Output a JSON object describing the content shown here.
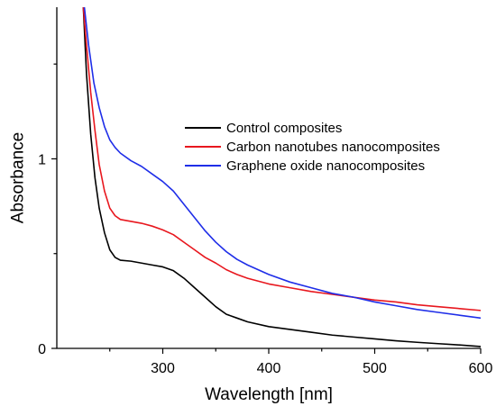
{
  "chart_data": {
    "type": "line",
    "xlabel": "Wavelength [nm]",
    "ylabel": "Absorbance",
    "xlim": [
      200,
      600
    ],
    "ylim": [
      0,
      1.8
    ],
    "xticks": [
      300,
      400,
      500,
      600
    ],
    "yticks": [
      0,
      1
    ],
    "legend_position": "center-right",
    "grid": false,
    "series": [
      {
        "name": "Control composites",
        "color": "#000000",
        "points": [
          [
            225,
            1.8
          ],
          [
            228,
            1.45
          ],
          [
            232,
            1.13
          ],
          [
            236,
            0.9
          ],
          [
            240,
            0.74
          ],
          [
            245,
            0.61
          ],
          [
            250,
            0.52
          ],
          [
            255,
            0.48
          ],
          [
            260,
            0.465
          ],
          [
            270,
            0.46
          ],
          [
            280,
            0.45
          ],
          [
            290,
            0.44
          ],
          [
            300,
            0.43
          ],
          [
            310,
            0.41
          ],
          [
            320,
            0.37
          ],
          [
            330,
            0.32
          ],
          [
            340,
            0.27
          ],
          [
            350,
            0.22
          ],
          [
            360,
            0.18
          ],
          [
            370,
            0.16
          ],
          [
            380,
            0.14
          ],
          [
            400,
            0.115
          ],
          [
            420,
            0.1
          ],
          [
            440,
            0.085
          ],
          [
            460,
            0.07
          ],
          [
            480,
            0.06
          ],
          [
            500,
            0.05
          ],
          [
            520,
            0.04
          ],
          [
            540,
            0.032
          ],
          [
            560,
            0.025
          ],
          [
            580,
            0.018
          ],
          [
            600,
            0.01
          ]
        ]
      },
      {
        "name": "Carbon nanotubes nanocomposites",
        "color": "#e8171e",
        "points": [
          [
            225,
            1.8
          ],
          [
            228,
            1.6
          ],
          [
            232,
            1.35
          ],
          [
            236,
            1.15
          ],
          [
            240,
            0.97
          ],
          [
            245,
            0.83
          ],
          [
            250,
            0.74
          ],
          [
            255,
            0.7
          ],
          [
            260,
            0.68
          ],
          [
            270,
            0.67
          ],
          [
            280,
            0.66
          ],
          [
            290,
            0.645
          ],
          [
            300,
            0.625
          ],
          [
            310,
            0.6
          ],
          [
            320,
            0.56
          ],
          [
            330,
            0.52
          ],
          [
            340,
            0.48
          ],
          [
            350,
            0.45
          ],
          [
            360,
            0.415
          ],
          [
            370,
            0.39
          ],
          [
            380,
            0.37
          ],
          [
            400,
            0.34
          ],
          [
            420,
            0.32
          ],
          [
            440,
            0.3
          ],
          [
            460,
            0.285
          ],
          [
            480,
            0.27
          ],
          [
            500,
            0.255
          ],
          [
            520,
            0.245
          ],
          [
            540,
            0.23
          ],
          [
            560,
            0.22
          ],
          [
            580,
            0.21
          ],
          [
            600,
            0.2
          ]
        ]
      },
      {
        "name": "Graphene oxide nanocomposites",
        "color": "#1f2ee8",
        "points": [
          [
            226,
            1.8
          ],
          [
            230,
            1.6
          ],
          [
            235,
            1.4
          ],
          [
            240,
            1.27
          ],
          [
            245,
            1.17
          ],
          [
            250,
            1.1
          ],
          [
            255,
            1.06
          ],
          [
            260,
            1.03
          ],
          [
            270,
            0.99
          ],
          [
            280,
            0.96
          ],
          [
            290,
            0.92
          ],
          [
            300,
            0.88
          ],
          [
            310,
            0.83
          ],
          [
            320,
            0.76
          ],
          [
            330,
            0.69
          ],
          [
            340,
            0.62
          ],
          [
            350,
            0.56
          ],
          [
            360,
            0.51
          ],
          [
            370,
            0.47
          ],
          [
            380,
            0.44
          ],
          [
            400,
            0.39
          ],
          [
            420,
            0.35
          ],
          [
            440,
            0.32
          ],
          [
            460,
            0.29
          ],
          [
            480,
            0.27
          ],
          [
            500,
            0.245
          ],
          [
            520,
            0.225
          ],
          [
            540,
            0.205
          ],
          [
            560,
            0.19
          ],
          [
            580,
            0.175
          ],
          [
            600,
            0.16
          ]
        ]
      }
    ]
  }
}
